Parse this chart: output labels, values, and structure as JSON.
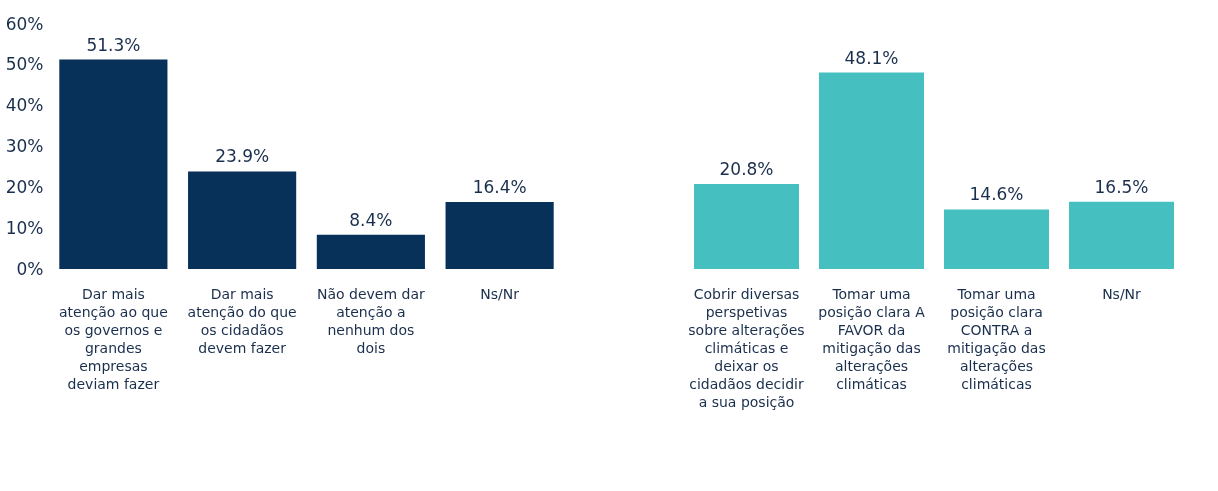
{
  "chart_data": [
    {
      "type": "bar",
      "categories": [
        "Dar mais atenção ao que os governos e grandes empresas deviam fazer",
        "Dar mais atenção do que os cidadãos devem fazer",
        "Não devem dar atenção a nenhum dos dois",
        "Ns/Nr"
      ],
      "values": [
        51.3,
        23.9,
        8.4,
        16.4
      ],
      "value_labels": [
        "51.3%",
        "23.9%",
        "8.4%",
        "16.4%"
      ],
      "color": "#08315a",
      "ylim": [
        0,
        60
      ],
      "yticks": [
        {
          "value": 0,
          "label": "0%"
        },
        {
          "value": 10,
          "label": "10%"
        },
        {
          "value": 20,
          "label": "20%"
        },
        {
          "value": 30,
          "label": "30%"
        },
        {
          "value": 40,
          "label": "40%"
        },
        {
          "value": 50,
          "label": "50%"
        },
        {
          "value": 60,
          "label": "60%"
        }
      ]
    },
    {
      "type": "bar",
      "categories": [
        "Cobrir diversas perspetivas sobre alterações climáticas e deixar os cidadãos decidir a sua posição",
        "Tomar uma posição clara A FAVOR da mitigação das alterações climáticas",
        "Tomar uma posição clara CONTRA a mitigação das alterações climáticas",
        "Ns/Nr"
      ],
      "values": [
        20.8,
        48.1,
        14.6,
        16.5
      ],
      "value_labels": [
        "20.8%",
        "48.1%",
        "14.6%",
        "16.5%"
      ],
      "color": "#45bfbf",
      "ylim": [
        0,
        60
      ],
      "tick_labels": "x"
    }
  ]
}
